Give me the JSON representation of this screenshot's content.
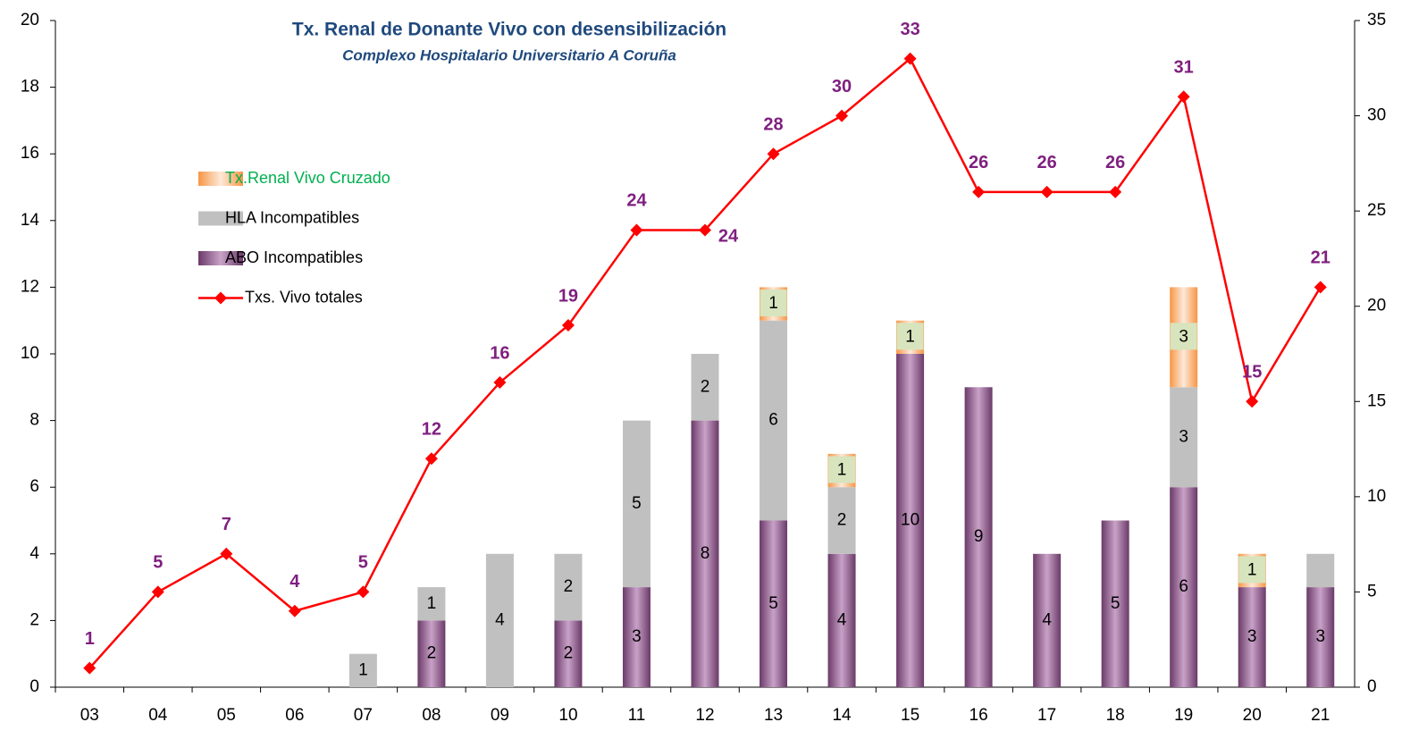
{
  "chart_data": {
    "type": "bar",
    "title": "Tx. Renal de Donante Vivo con desensibilización",
    "subtitle": "Complexo Hospitalario Universitario A Coruña",
    "categories": [
      "03",
      "04",
      "05",
      "06",
      "07",
      "08",
      "09",
      "10",
      "11",
      "12",
      "13",
      "14",
      "15",
      "16",
      "17",
      "18",
      "19",
      "20",
      "21"
    ],
    "ylim": [
      0,
      20
    ],
    "yticks": [
      0,
      2,
      4,
      6,
      8,
      10,
      12,
      14,
      16,
      18,
      20
    ],
    "y2lim": [
      0,
      35
    ],
    "y2ticks": [
      0,
      5,
      10,
      15,
      20,
      25,
      30,
      35
    ],
    "stacked": true,
    "series": [
      {
        "name": "ABO Incompatibles",
        "color": "#8e5a8c",
        "values": [
          null,
          null,
          null,
          null,
          null,
          2,
          null,
          2,
          3,
          8,
          5,
          4,
          10,
          9,
          4,
          5,
          6,
          3,
          3
        ]
      },
      {
        "name": "HLA Incompatibles",
        "color": "#c0c0c0",
        "values": [
          null,
          null,
          null,
          null,
          1,
          1,
          4,
          2,
          5,
          2,
          6,
          2,
          null,
          null,
          null,
          null,
          3,
          null,
          1
        ],
        "value_labels": [
          null,
          null,
          null,
          null,
          "1",
          "1",
          "4",
          "2",
          "5",
          "2",
          "6",
          "2",
          null,
          null,
          null,
          null,
          "3",
          null,
          null
        ]
      },
      {
        "name": "Tx.Renal Vivo Cruzado",
        "color": "#f79646",
        "values": [
          null,
          null,
          null,
          null,
          null,
          null,
          null,
          null,
          null,
          null,
          1,
          1,
          1,
          null,
          null,
          null,
          3,
          1,
          null
        ]
      },
      {
        "name": "Txs. Vivo totales",
        "type": "line",
        "axis": "y2",
        "color": "#ff0000",
        "values": [
          1,
          5,
          7,
          4,
          5,
          12,
          16,
          19,
          24,
          24,
          28,
          30,
          33,
          26,
          26,
          26,
          31,
          15,
          21
        ]
      }
    ]
  }
}
